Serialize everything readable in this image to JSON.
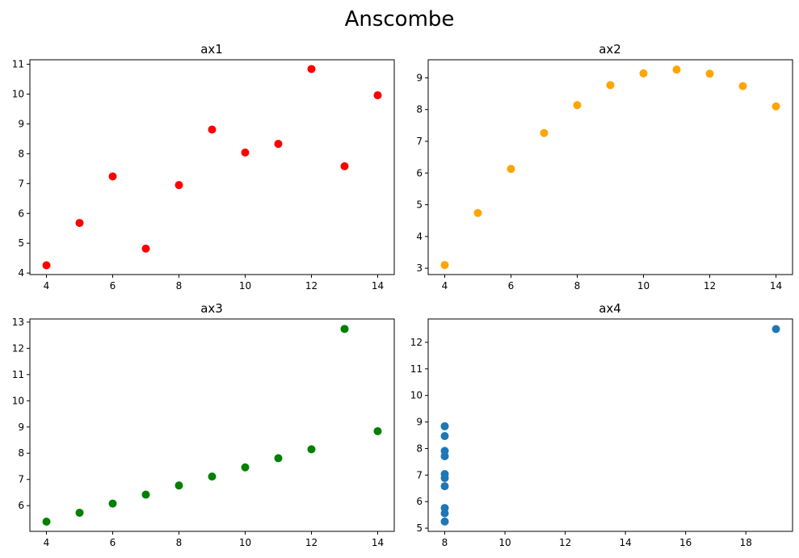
{
  "figure": {
    "title": "Anscombe"
  },
  "chart_data": [
    {
      "type": "scatter",
      "title": "ax1",
      "color": "#ff0000",
      "xlim": [
        3.5,
        14.5
      ],
      "ylim": [
        3.95,
        11.15
      ],
      "xticks": [
        4,
        6,
        8,
        10,
        12,
        14
      ],
      "yticks": [
        4,
        5,
        6,
        7,
        8,
        9,
        10,
        11
      ],
      "x": [
        10,
        8,
        13,
        9,
        11,
        14,
        6,
        4,
        12,
        7,
        5
      ],
      "y": [
        8.04,
        6.95,
        7.58,
        8.81,
        8.33,
        9.96,
        7.24,
        4.26,
        10.84,
        4.82,
        5.68
      ]
    },
    {
      "type": "scatter",
      "title": "ax2",
      "color": "#ffa500",
      "xlim": [
        3.5,
        14.5
      ],
      "ylim": [
        2.8,
        9.57
      ],
      "xticks": [
        4,
        6,
        8,
        10,
        12,
        14
      ],
      "yticks": [
        3,
        4,
        5,
        6,
        7,
        8,
        9
      ],
      "x": [
        10,
        8,
        13,
        9,
        11,
        14,
        6,
        4,
        12,
        7,
        5
      ],
      "y": [
        9.14,
        8.14,
        8.74,
        8.77,
        9.26,
        8.1,
        6.13,
        3.1,
        9.13,
        7.26,
        4.74
      ]
    },
    {
      "type": "scatter",
      "title": "ax3",
      "color": "#008000",
      "xlim": [
        3.5,
        14.5
      ],
      "ylim": [
        5.02,
        13.12
      ],
      "xticks": [
        4,
        6,
        8,
        10,
        12,
        14
      ],
      "yticks": [
        6,
        7,
        8,
        9,
        10,
        11,
        12,
        13
      ],
      "x": [
        10,
        8,
        13,
        9,
        11,
        14,
        6,
        4,
        12,
        7,
        5
      ],
      "y": [
        7.46,
        6.77,
        12.74,
        7.11,
        7.81,
        8.84,
        6.08,
        5.39,
        8.15,
        6.42,
        5.73
      ]
    },
    {
      "type": "scatter",
      "title": "ax4",
      "color": "#1f77b4",
      "xlim": [
        7.45,
        19.55
      ],
      "ylim": [
        4.88,
        12.88
      ],
      "xticks": [
        8,
        10,
        12,
        14,
        16,
        18
      ],
      "yticks": [
        5,
        6,
        7,
        8,
        9,
        10,
        11,
        12
      ],
      "x": [
        8,
        8,
        8,
        8,
        8,
        8,
        8,
        19,
        8,
        8,
        8
      ],
      "y": [
        6.58,
        5.76,
        7.71,
        8.84,
        8.47,
        7.04,
        5.25,
        12.5,
        5.56,
        7.91,
        6.89
      ]
    }
  ]
}
